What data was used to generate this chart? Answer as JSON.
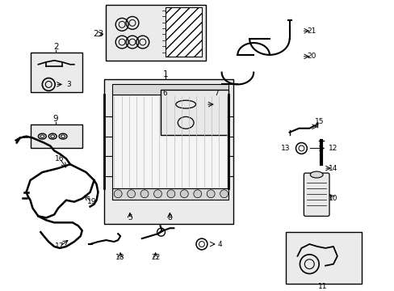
{
  "bg_color": "#ffffff",
  "fig_width": 4.89,
  "fig_height": 3.6,
  "dpi": 100,
  "label_fontsize": 7.5,
  "small_fontsize": 6.5
}
